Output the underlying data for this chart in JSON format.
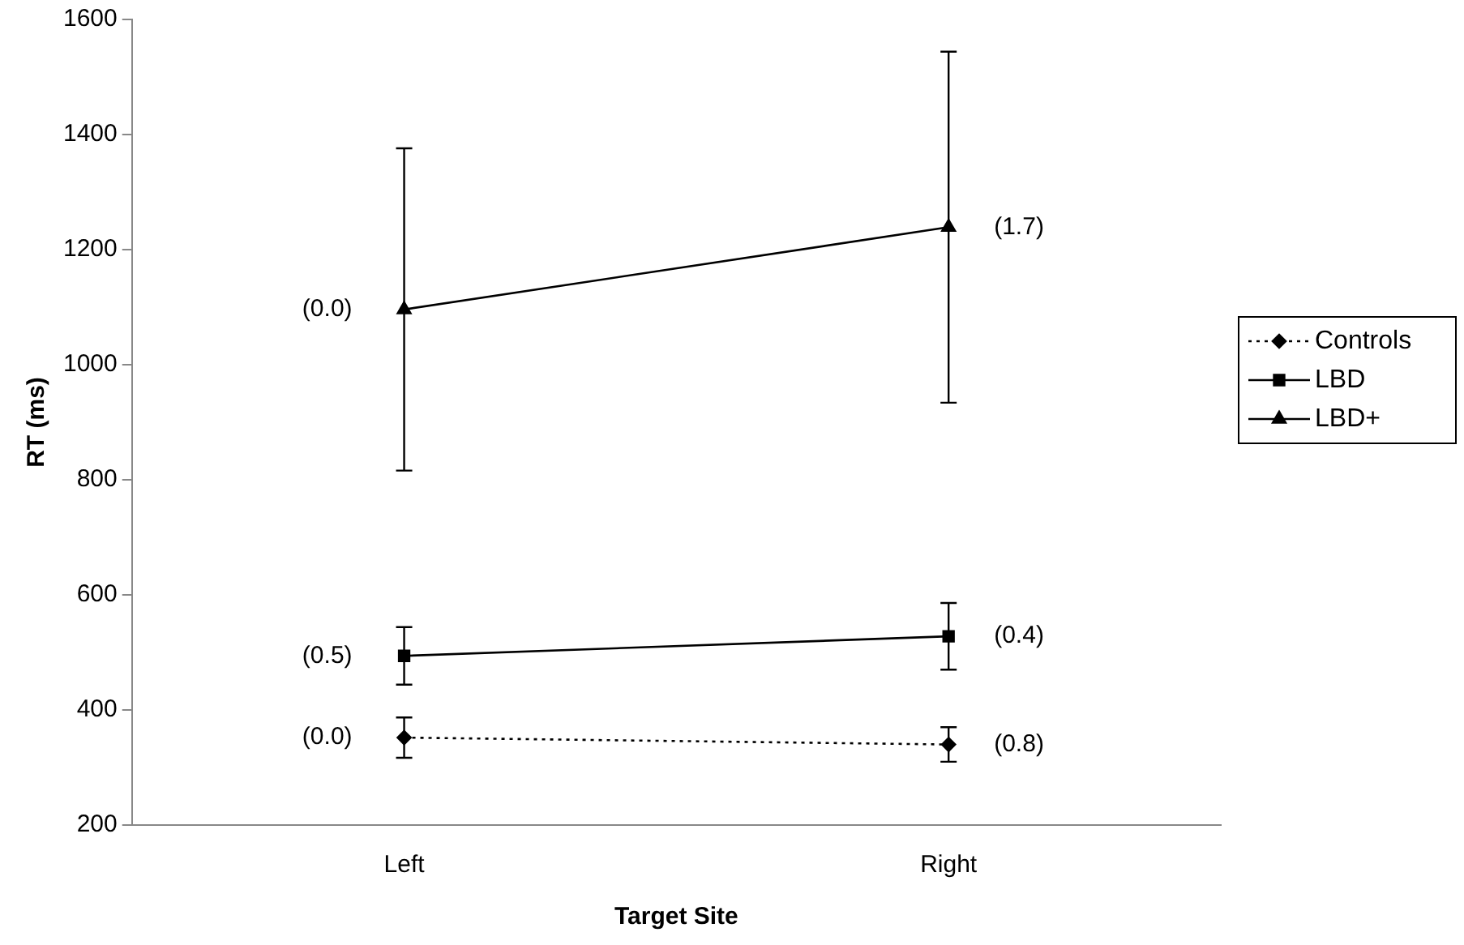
{
  "chart_data": {
    "type": "line",
    "xlabel": "Target Site",
    "ylabel": "RT (ms)",
    "categories": [
      "Left",
      "Right"
    ],
    "series": [
      {
        "name": "Controls",
        "color": "#000000",
        "values": [
          352,
          340
        ],
        "errors": [
          35,
          30
        ],
        "marker": "diamond",
        "line_style": "dotted"
      },
      {
        "name": "LBD",
        "color": "#000000",
        "values": [
          494,
          528
        ],
        "errors": [
          50,
          58
        ],
        "marker": "square",
        "line_style": "solid"
      },
      {
        "name": "LBD+",
        "color": "#000000",
        "values": [
          1096,
          1239
        ],
        "errors": [
          280,
          305
        ],
        "marker": "triangle",
        "line_style": "solid"
      }
    ],
    "ylim": [
      200,
      1600
    ],
    "yticks": [
      200,
      400,
      600,
      800,
      1000,
      1200,
      1400,
      1600
    ],
    "grid": false,
    "legend": "right",
    "annotations": [
      {
        "text": "(0.0)",
        "x": "Left",
        "y": 352
      },
      {
        "text": "(0.8)",
        "x": "Right",
        "y": 340
      },
      {
        "text": "(0.5)",
        "x": "Left",
        "y": 494
      },
      {
        "text": "(0.4)",
        "x": "Right",
        "y": 528
      },
      {
        "text": "(0.0)",
        "x": "Left",
        "y": 1096
      },
      {
        "text": "(1.7)",
        "x": "Right",
        "y": 1239
      }
    ]
  }
}
